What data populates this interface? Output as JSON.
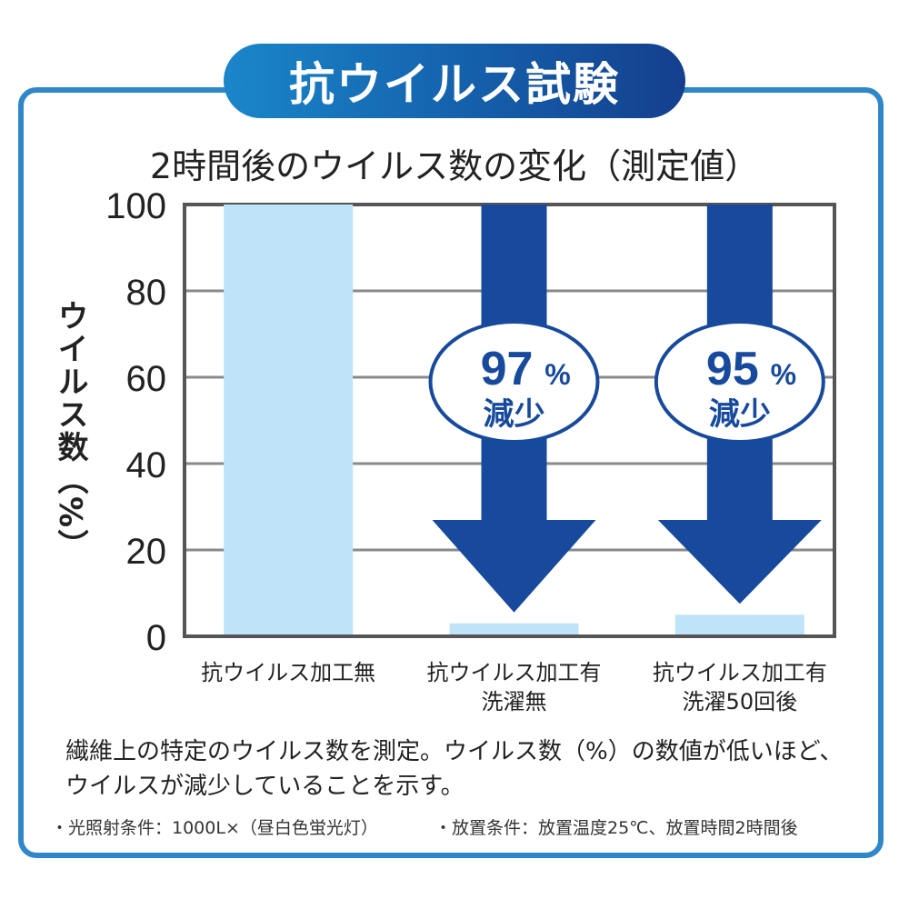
{
  "title": "抗ウイルス試験",
  "chart_data": {
    "type": "bar",
    "title": "2時間後のウイルス数の変化（測定値）",
    "ylabel": "ウイルス数（%）",
    "xlabel": "",
    "ylim": [
      0,
      100
    ],
    "yticks": [
      0,
      20,
      40,
      60,
      80,
      100
    ],
    "grid": true,
    "categories": [
      [
        "抗ウイルス加工無"
      ],
      [
        "抗ウイルス加工有",
        "洗濯無"
      ],
      [
        "抗ウイルス加工有",
        "洗濯50回後"
      ]
    ],
    "values": [
      100,
      3,
      5
    ],
    "annotations": [
      {
        "category_index": 1,
        "percent": "97",
        "unit": "%",
        "text": "減少"
      },
      {
        "category_index": 2,
        "percent": "95",
        "unit": "%",
        "text": "減少"
      }
    ],
    "colors": {
      "bar": "#bfe3f8",
      "arrow": "#174a9c",
      "grid": "#8a8a8a",
      "axis": "#555555"
    }
  },
  "footnote": "繊維上の特定のウイルス数を測定。ウイルス数（%）の数値が低いほど、ウイルスが減少していることを示す。",
  "conditions": {
    "light": "・光照射条件：1000L×（昼白色蛍光灯）",
    "placement": "・放置条件：放置温度25℃、放置時間2時間後"
  }
}
